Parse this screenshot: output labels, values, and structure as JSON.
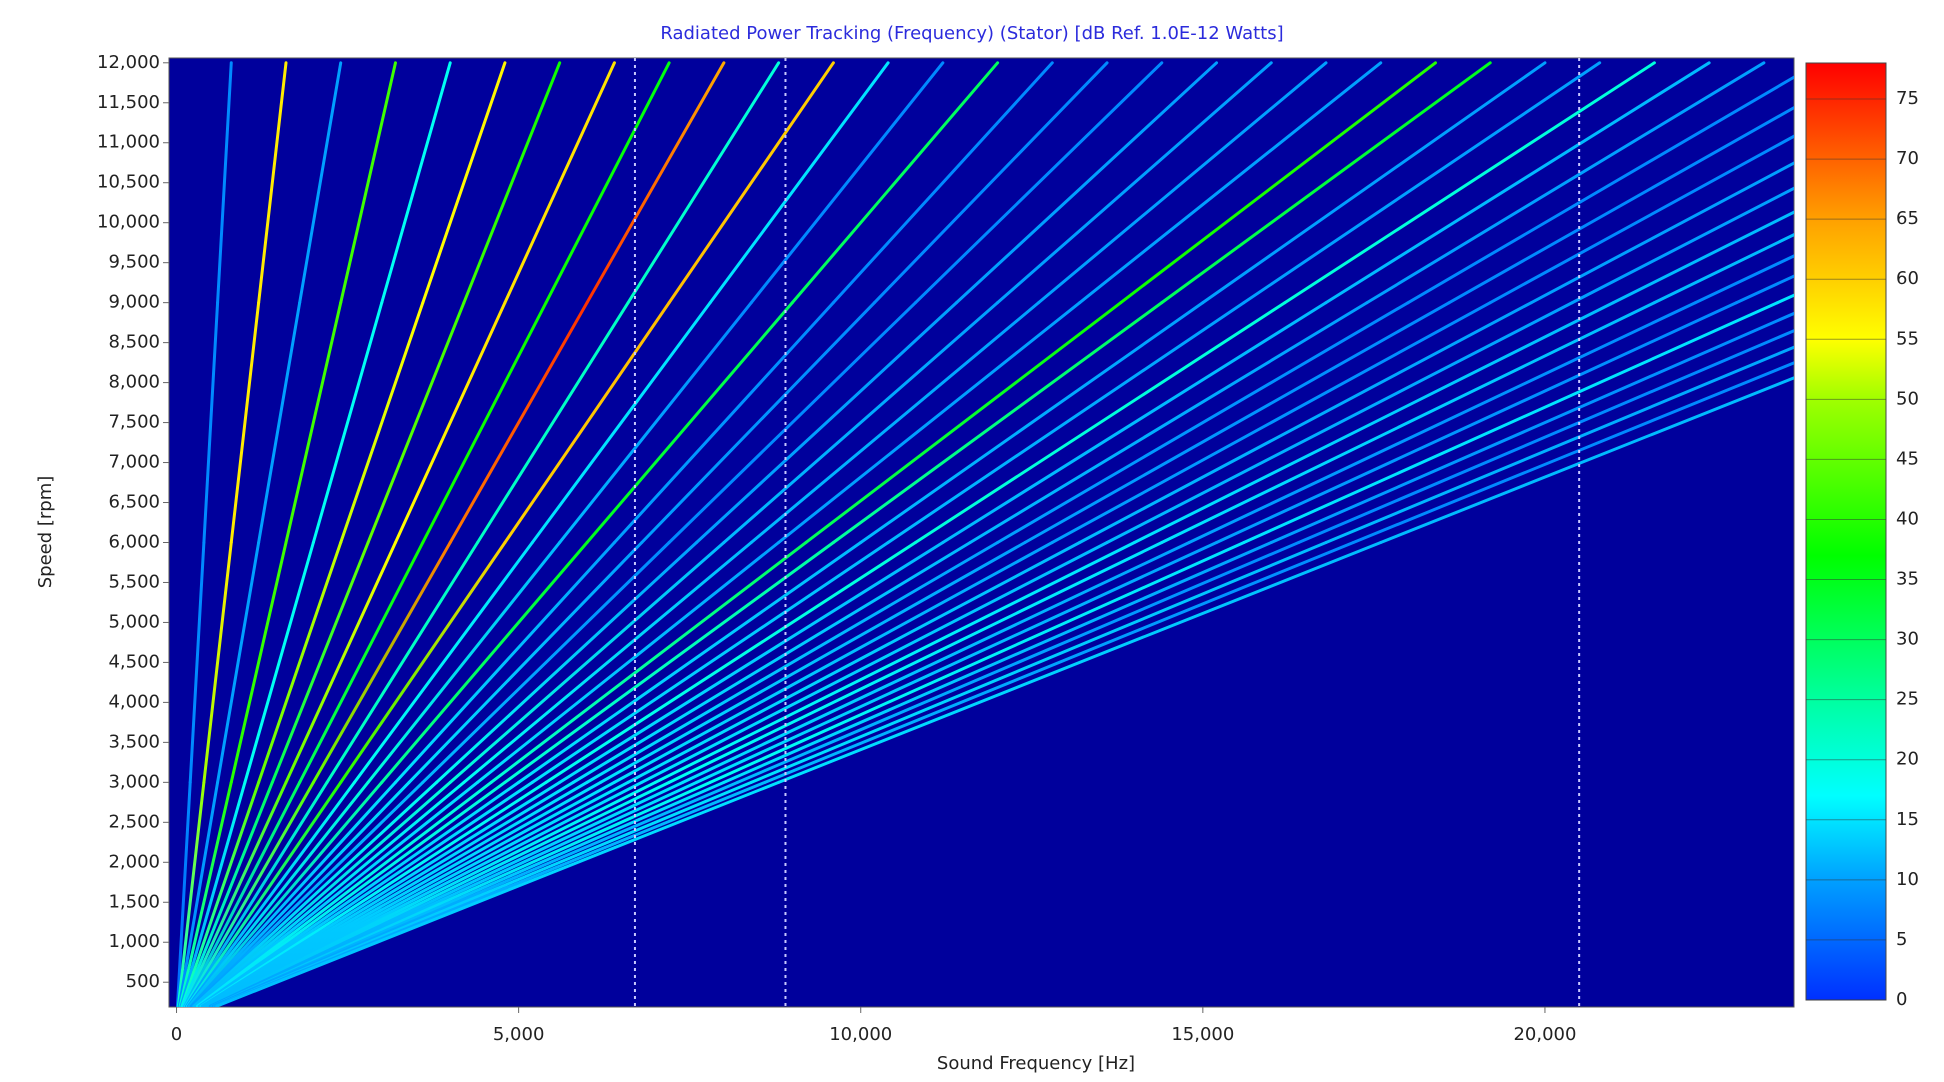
{
  "chart_data": {
    "type": "order_tracking",
    "title": "Radiated Power Tracking (Frequency) (Stator) [dB Ref. 1.0E-12 Watts]",
    "x_label": "Sound Frequency [Hz]",
    "y_label": "Speed [rpm]",
    "xlim": [
      -110,
      23640
    ],
    "ylim": [
      190,
      12060
    ],
    "xticks": [
      0,
      {
        "value": 5000,
        "label": "5,000"
      },
      {
        "value": 10000,
        "label": "10,000"
      },
      {
        "value": 15000,
        "label": "15,000"
      },
      {
        "value": 20000,
        "label": "20,000"
      }
    ],
    "yticks": [
      500,
      {
        "value": 1000,
        "label": "1,000"
      },
      {
        "value": 1500,
        "label": "1,500"
      },
      {
        "value": 2000,
        "label": "2,000"
      },
      {
        "value": 2500,
        "label": "2,500"
      },
      {
        "value": 3000,
        "label": "3,000"
      },
      {
        "value": 3500,
        "label": "3,500"
      },
      {
        "value": 4000,
        "label": "4,000"
      },
      {
        "value": 4500,
        "label": "4,500"
      },
      {
        "value": 5000,
        "label": "5,000"
      },
      {
        "value": 5500,
        "label": "5,500"
      },
      {
        "value": 6000,
        "label": "6,000"
      },
      {
        "value": 6500,
        "label": "6,500"
      },
      {
        "value": 7000,
        "label": "7,000"
      },
      {
        "value": 7500,
        "label": "7,500"
      },
      {
        "value": 8000,
        "label": "8,000"
      },
      {
        "value": 8500,
        "label": "8,500"
      },
      {
        "value": 9000,
        "label": "9,000"
      },
      {
        "value": 9500,
        "label": "9,500"
      },
      {
        "value": 10000,
        "label": "10,000"
      },
      {
        "value": 10500,
        "label": "10,500"
      },
      {
        "value": 11000,
        "label": "11,000"
      },
      {
        "value": 11500,
        "label": "11,500"
      },
      {
        "value": 12000,
        "label": "12,000"
      }
    ],
    "clim": [
      0,
      78
    ],
    "cticks": [
      0,
      5,
      10,
      15,
      20,
      25,
      30,
      35,
      40,
      45,
      50,
      55,
      60,
      65,
      70,
      75
    ],
    "colormap": [
      [
        0,
        "#0030ff"
      ],
      [
        10,
        "#00a0ff"
      ],
      [
        17,
        "#00ffff"
      ],
      [
        25,
        "#00ffa0"
      ],
      [
        37,
        "#00ff00"
      ],
      [
        50,
        "#a0ff00"
      ],
      [
        55,
        "#ffff00"
      ],
      [
        65,
        "#ffa000"
      ],
      [
        78,
        "#ff0000"
      ]
    ],
    "background": "#00009c",
    "markers": [
      6700,
      8900,
      20500
    ],
    "speeds": [
      200,
      3000,
      6000,
      9000,
      12000
    ],
    "series": [
      {
        "order": 4,
        "values": [
          5,
          8,
          8,
          8,
          8
        ]
      },
      {
        "order": 8,
        "values": [
          20,
          50,
          57,
          57,
          57
        ]
      },
      {
        "order": 12,
        "values": [
          8,
          10,
          10,
          10,
          10
        ]
      },
      {
        "order": 16,
        "values": [
          20,
          40,
          42,
          42,
          42
        ]
      },
      {
        "order": 20,
        "values": [
          10,
          18,
          18,
          18,
          18
        ]
      },
      {
        "order": 24,
        "values": [
          20,
          45,
          52,
          55,
          56
        ]
      },
      {
        "order": 28,
        "values": [
          15,
          30,
          45,
          42,
          38
        ]
      },
      {
        "order": 32,
        "values": [
          15,
          45,
          55,
          58,
          58
        ]
      },
      {
        "order": 36,
        "values": [
          12,
          30,
          38,
          38,
          36
        ]
      },
      {
        "order": 40,
        "values": [
          15,
          45,
          68,
          74,
          64
        ]
      },
      {
        "order": 44,
        "values": [
          10,
          22,
          22,
          22,
          20
        ]
      },
      {
        "order": 48,
        "values": [
          15,
          40,
          60,
          62,
          60
        ]
      },
      {
        "order": 52,
        "values": [
          10,
          18,
          15,
          15,
          15
        ]
      },
      {
        "order": 56,
        "values": [
          12,
          20,
          12,
          8,
          8
        ]
      },
      {
        "order": 60,
        "values": [
          12,
          25,
          35,
          30,
          30
        ]
      },
      {
        "order": 64,
        "values": [
          10,
          15,
          10,
          8,
          8
        ]
      },
      {
        "order": 68,
        "values": [
          10,
          15,
          10,
          8,
          8
        ]
      },
      {
        "order": 72,
        "values": [
          10,
          12,
          8,
          8,
          8
        ]
      },
      {
        "order": 76,
        "values": [
          12,
          18,
          10,
          10,
          10
        ]
      },
      {
        "order": 80,
        "values": [
          12,
          20,
          12,
          10,
          10
        ]
      },
      {
        "order": 84,
        "values": [
          12,
          18,
          12,
          10,
          10
        ]
      },
      {
        "order": 88,
        "values": [
          12,
          15,
          10,
          10,
          10
        ]
      },
      {
        "order": 92,
        "values": [
          15,
          20,
          30,
          38,
          40
        ]
      },
      {
        "order": 96,
        "values": [
          15,
          20,
          25,
          30,
          35
        ]
      },
      {
        "order": 100,
        "values": [
          12,
          15,
          12,
          10,
          10
        ]
      },
      {
        "order": 104,
        "values": [
          12,
          15,
          12,
          10,
          10
        ]
      },
      {
        "order": 108,
        "values": [
          15,
          18,
          20,
          20,
          20
        ]
      },
      {
        "order": 112,
        "values": [
          12,
          15,
          12,
          12,
          12
        ]
      },
      {
        "order": 116,
        "values": [
          12,
          15,
          12,
          10,
          10
        ]
      },
      {
        "order": 120,
        "values": [
          12,
          15,
          10,
          8,
          8
        ]
      },
      {
        "order": 124,
        "values": [
          12,
          15,
          10,
          8,
          8
        ]
      },
      {
        "order": 128,
        "values": [
          12,
          15,
          10,
          8,
          8
        ]
      },
      {
        "order": 132,
        "values": [
          12,
          15,
          12,
          10,
          10
        ]
      },
      {
        "order": 136,
        "values": [
          12,
          15,
          12,
          10,
          10
        ]
      },
      {
        "order": 140,
        "values": [
          12,
          18,
          15,
          12,
          12
        ]
      },
      {
        "order": 144,
        "values": [
          12,
          18,
          15,
          12,
          12
        ]
      },
      {
        "order": 148,
        "values": [
          10,
          15,
          10,
          8,
          8
        ]
      },
      {
        "order": 152,
        "values": [
          10,
          15,
          10,
          8,
          8
        ]
      },
      {
        "order": 156,
        "values": [
          12,
          18,
          15,
          15,
          15
        ]
      },
      {
        "order": 160,
        "values": [
          10,
          15,
          10,
          8,
          8
        ]
      },
      {
        "order": 164,
        "values": [
          10,
          12,
          8,
          8,
          8
        ]
      },
      {
        "order": 168,
        "values": [
          12,
          15,
          12,
          10,
          10
        ]
      },
      {
        "order": 172,
        "values": [
          10,
          12,
          8,
          8,
          8
        ]
      },
      {
        "order": 176,
        "values": [
          12,
          15,
          12,
          12,
          12
        ]
      }
    ]
  }
}
